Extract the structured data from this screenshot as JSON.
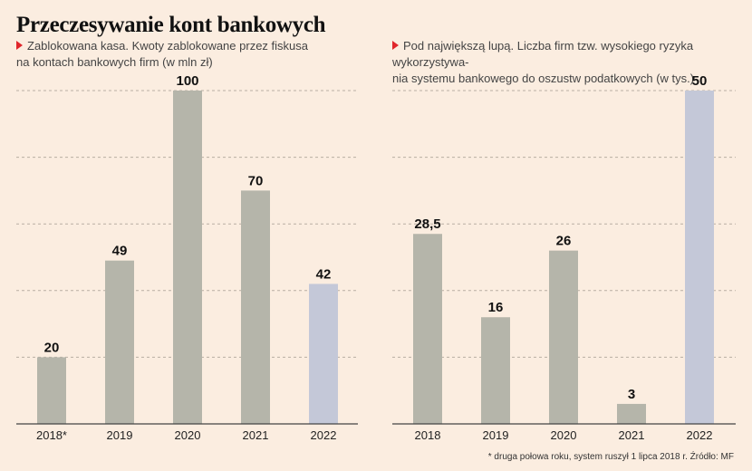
{
  "title": "Przeczesywanie kont bankowych",
  "footnote": "* druga połowa roku, system ruszył 1 lipca 2018 r. Źródło: MF",
  "colors": {
    "background": "#fbede0",
    "bar": "#b5b5aa",
    "bar_highlight": "#c4c8d8",
    "accent_marker": "#e0262b"
  },
  "chart_data": [
    {
      "type": "bar",
      "title": "Zablokowana kasa. Kwoty zablokowane przez fiskusa na kontach bankowych firm (w mln zł)",
      "title_lines": [
        "Zablokowana kasa. Kwoty zablokowane przez fiskusa",
        "na kontach bankowych firm (w mln zł)"
      ],
      "categories": [
        "2018*",
        "2019",
        "2020",
        "2021",
        "2022"
      ],
      "values": [
        20,
        49,
        100,
        70,
        42
      ],
      "value_labels": [
        "20",
        "49",
        "100",
        "70",
        "42"
      ],
      "highlight_index": 4,
      "ylim": [
        0,
        100
      ],
      "grid": true,
      "xlabel": "",
      "ylabel": ""
    },
    {
      "type": "bar",
      "title": "Pod największą lupą. Liczba firm tzw. wysokiego ryzyka wykorzystywania systemu bankowego do oszustw podatkowych (w tys.)",
      "title_lines": [
        "Pod największą lupą. Liczba firm tzw. wysokiego ryzyka wykorzystywa-",
        "nia systemu bankowego do oszustw podatkowych (w tys.)"
      ],
      "categories": [
        "2018",
        "2019",
        "2020",
        "2021",
        "2022"
      ],
      "values": [
        28.5,
        16,
        26,
        3,
        50
      ],
      "value_labels": [
        "28,5",
        "16",
        "26",
        "3",
        "50"
      ],
      "highlight_index": 4,
      "ylim": [
        0,
        50
      ],
      "grid": true,
      "xlabel": "",
      "ylabel": ""
    }
  ]
}
